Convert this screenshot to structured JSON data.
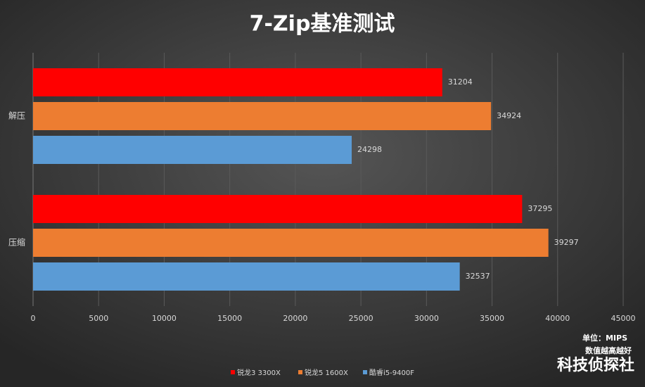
{
  "chart_data": {
    "type": "hbar",
    "title": "7-Zip基准测试",
    "categories": [
      "解压",
      "压缩"
    ],
    "series": [
      {
        "name": "锐龙3 3300X",
        "color": "#ff0000",
        "values": [
          31204,
          37295
        ]
      },
      {
        "name": "锐龙5 1600X",
        "color": "#ed7d31",
        "values": [
          34924,
          39297
        ]
      },
      {
        "name": "酷睿i5-9400F",
        "color": "#5b9bd5",
        "values": [
          24298,
          32537
        ]
      }
    ],
    "xlim": [
      0,
      45000
    ],
    "xticks": [
      0,
      5000,
      10000,
      15000,
      20000,
      25000,
      30000,
      35000,
      40000,
      45000
    ],
    "grid": true,
    "annotations": [
      "单位：MIPS",
      "数值越高越好",
      "科技侦探社"
    ]
  }
}
